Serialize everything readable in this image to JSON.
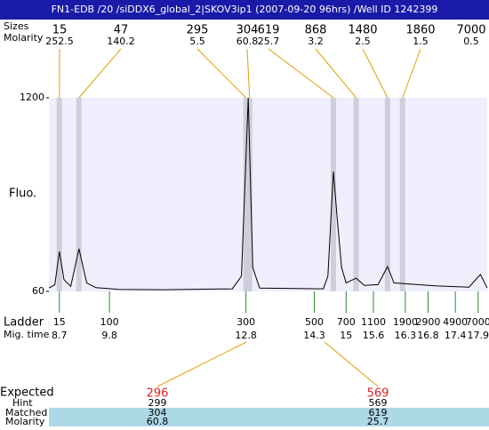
{
  "title": "FN1-EDB /20 /siDDX6_global_2|SKOV3ip1 (2007-09-20 96hrs) /Well ID 1242399",
  "peaks": {
    "size_label": "Sizes",
    "molarity_label": "Molarity",
    "sizes": [
      15,
      47,
      295,
      304,
      619,
      868,
      1480,
      1860,
      7000
    ],
    "molarity": [
      252.5,
      140.2,
      5.5,
      60.8,
      25.7,
      3.2,
      2.5,
      1.5,
      0.5
    ],
    "times": [
      8.7,
      9.13,
      12.8,
      12.88,
      14.72,
      15.22,
      15.91,
      16.24,
      17.95
    ]
  },
  "chart_data": {
    "type": "line",
    "ylabel": "Fluo.",
    "x": [
      8.47,
      8.6,
      8.7,
      8.8,
      8.95,
      9.13,
      9.3,
      9.5,
      10,
      11,
      12.5,
      12.7,
      12.85,
      12.95,
      13.1,
      14.5,
      14.6,
      14.72,
      14.8,
      14.9,
      15.0,
      15.22,
      15.4,
      15.7,
      15.91,
      16.05,
      16.3,
      17,
      17.7,
      17.95,
      18.1
    ],
    "values": [
      80,
      100,
      295,
      130,
      90,
      311,
      110,
      82,
      72,
      70,
      75,
      150,
      1200,
      200,
      80,
      75,
      150,
      766,
      500,
      200,
      110,
      138,
      95,
      100,
      206,
      110,
      105,
      92,
      85,
      160,
      80
    ],
    "xlim": [
      8.47,
      18.1
    ],
    "ylim": [
      60,
      1200
    ],
    "yticks": [
      60,
      1200
    ],
    "color": "#000000",
    "band_color": "#cfcfdc",
    "background": "#eeeefc"
  },
  "ladder": {
    "label": "Ladder",
    "time_label": "Mig. time",
    "sizes": [
      15,
      100,
      300,
      500,
      700,
      1100,
      1900,
      2900,
      4900,
      7000
    ],
    "times": [
      8.7,
      9.8,
      12.8,
      14.3,
      15,
      15.6,
      16.3,
      16.8,
      17.4,
      17.9
    ]
  },
  "expected": {
    "label": "Expected",
    "values": [
      296,
      569
    ],
    "hint_label": "Hint",
    "hint": [
      299,
      569
    ],
    "matched_label": "Matched",
    "matched": [
      304,
      619
    ],
    "molarity_label": "Molarity",
    "molarity": [
      60.8,
      25.7
    ]
  }
}
